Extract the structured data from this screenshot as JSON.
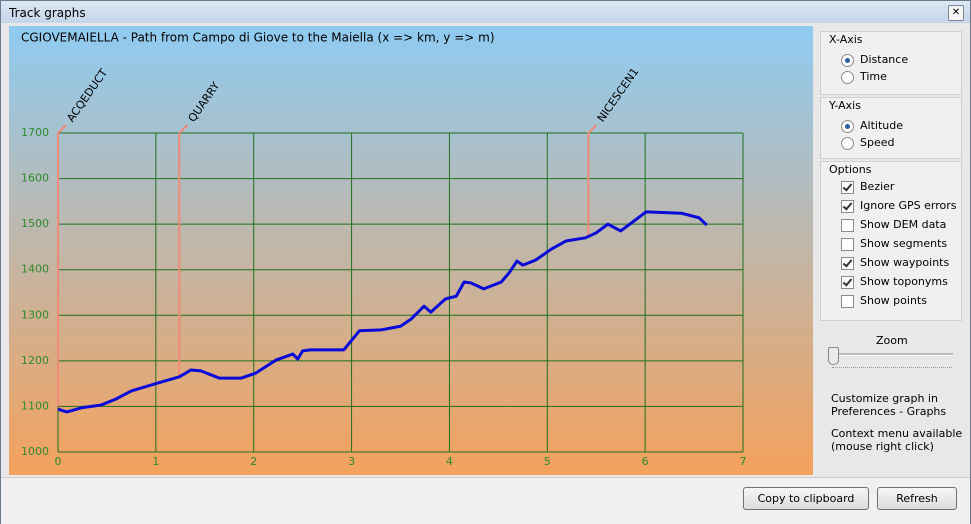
{
  "window": {
    "title": "Track graphs"
  },
  "chart_data": {
    "type": "line",
    "title": "CGIOVEMAIELLA - Path from Campo di Giove to the Maiella (x => km, y => m)",
    "x": [
      0,
      0.09,
      0.24,
      0.44,
      0.59,
      0.75,
      0.95,
      1.24,
      1.36,
      1.46,
      1.65,
      1.87,
      2.02,
      2.23,
      2.35,
      2.4,
      2.45,
      2.5,
      2.58,
      2.92,
      3.08,
      3.3,
      3.5,
      3.61,
      3.74,
      3.81,
      3.96,
      4.07,
      4.15,
      4.22,
      4.35,
      4.53,
      4.61,
      4.69,
      4.75,
      4.88,
      5.04,
      5.19,
      5.39,
      5.5,
      5.62,
      5.75,
      6.01,
      6.37,
      6.55,
      6.63
    ],
    "series": [
      {
        "color": "#0a0ad8",
        "values": [
          1094,
          1088,
          1097,
          1103,
          1116,
          1134,
          1147,
          1165,
          1180,
          1178,
          1162,
          1162,
          1173,
          1202,
          1211,
          1215,
          1204,
          1222,
          1224,
          1224,
          1266,
          1268,
          1276,
          1292,
          1320,
          1307,
          1336,
          1342,
          1373,
          1371,
          1358,
          1373,
          1393,
          1419,
          1410,
          1421,
          1445,
          1463,
          1470,
          1481,
          1500,
          1485,
          1527,
          1524,
          1514,
          1498
        ]
      }
    ],
    "xlim": [
      0,
      7
    ],
    "ylim": [
      1000,
      1700
    ],
    "xticks": [
      0,
      1,
      2,
      3,
      4,
      5,
      6,
      7
    ],
    "yticks": [
      1000,
      1100,
      1200,
      1300,
      1400,
      1500,
      1600,
      1700
    ],
    "grid": true,
    "grid_color": "#1f6e1f",
    "tick_color": "#2e8a2e",
    "annotations": [
      {
        "text": "ACQEDUCT",
        "x": 0,
        "y": 1100,
        "color": "#f08a78"
      },
      {
        "text": "QUARRY",
        "x": 1.24,
        "y": 1165,
        "color": "#f08a78"
      },
      {
        "text": "NICESCEN1",
        "x": 5.42,
        "y": 1470,
        "color": "#f08a78"
      }
    ]
  },
  "panel": {
    "groups": [
      {
        "title": "X-Axis",
        "kind": "radio",
        "items": [
          {
            "label": "Distance",
            "checked": true
          },
          {
            "label": "Time",
            "checked": false
          }
        ]
      },
      {
        "title": "Y-Axis",
        "kind": "radio",
        "items": [
          {
            "label": "Altitude",
            "checked": true
          },
          {
            "label": "Speed",
            "checked": false
          }
        ]
      },
      {
        "title": "Options",
        "kind": "checkbox",
        "items": [
          {
            "label": "Bezier",
            "checked": true
          },
          {
            "label": "Ignore GPS errors",
            "checked": true
          },
          {
            "label": "Show DEM data",
            "checked": false
          },
          {
            "label": "Show segments",
            "checked": false
          },
          {
            "label": "Show waypoints",
            "checked": true
          },
          {
            "label": "Show toponyms",
            "checked": true
          },
          {
            "label": "Show points",
            "checked": false
          }
        ]
      }
    ],
    "zoom_label": "Zoom",
    "notes": [
      [
        "Customize graph in",
        "Preferences - Graphs"
      ],
      [
        "Context menu available",
        "(mouse right click)"
      ]
    ]
  },
  "buttons": [
    "Copy to clipboard",
    "Refresh"
  ]
}
